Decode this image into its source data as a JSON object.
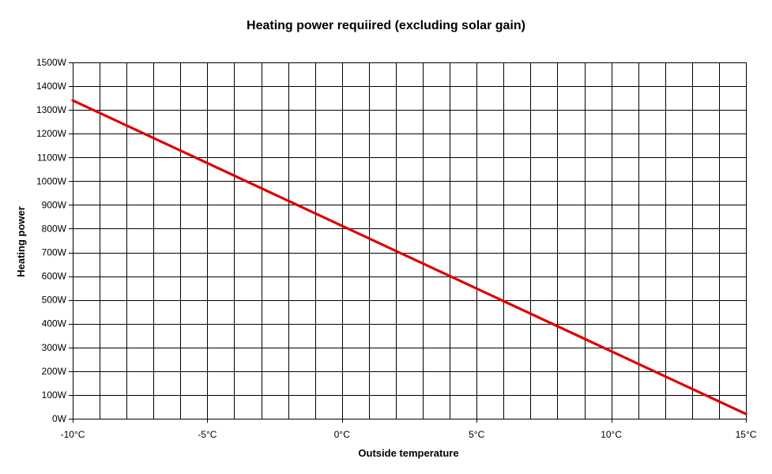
{
  "chart_data": {
    "type": "line",
    "title": "Heating power requiired (excluding solar gain)",
    "xlabel": "Outside temperature",
    "ylabel": "Heating power",
    "xlim": [
      -10,
      15
    ],
    "ylim": [
      0,
      1500
    ],
    "x_ticks": [
      -10,
      -5,
      0,
      5,
      10,
      15
    ],
    "x_tick_labels": [
      "-10°C",
      "-5°C",
      "0°C",
      "5°C",
      "10°C",
      "15°C"
    ],
    "y_ticks": [
      0,
      100,
      200,
      300,
      400,
      500,
      600,
      700,
      800,
      900,
      1000,
      1100,
      1200,
      1300,
      1400,
      1500
    ],
    "y_tick_labels": [
      "0W",
      "100W",
      "200W",
      "300W",
      "400W",
      "500W",
      "600W",
      "700W",
      "800W",
      "900W",
      "1000W",
      "1100W",
      "1200W",
      "1300W",
      "1400W",
      "1500W"
    ],
    "x_minor_step": 1,
    "grid": true,
    "legend": "none",
    "series": [
      {
        "color": "#dd0000",
        "x": [
          -10,
          15
        ],
        "y": [
          1340,
          20
        ]
      }
    ]
  }
}
